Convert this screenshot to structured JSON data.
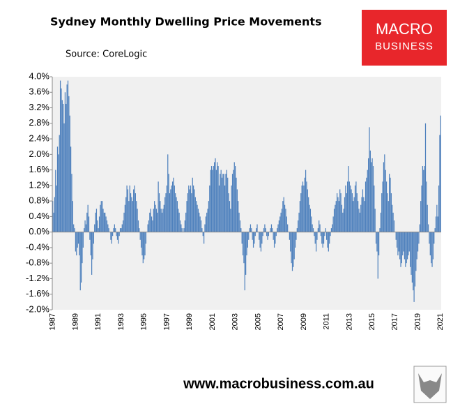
{
  "chart_data": {
    "type": "bar",
    "title": "Sydney Monthly Dwelling Price Movements",
    "subtitle": "Source: CoreLogic",
    "logo": [
      "MACRO",
      "BUSINESS"
    ],
    "footer": "www.macrobusiness.com.au",
    "color": "#4f81bd",
    "grid": false,
    "ylim": [
      -2.0,
      4.0
    ],
    "yticks": [
      {
        "value": -2.0,
        "label": "-2.0%"
      },
      {
        "value": -1.6,
        "label": "-1.6%"
      },
      {
        "value": -1.2,
        "label": "-1.2%"
      },
      {
        "value": -0.8,
        "label": "-0.8%"
      },
      {
        "value": -0.4,
        "label": "-0.4%"
      },
      {
        "value": 0.0,
        "label": "0.0%"
      },
      {
        "value": 0.4,
        "label": "0.4%"
      },
      {
        "value": 0.8,
        "label": "0.8%"
      },
      {
        "value": 1.2,
        "label": "1.2%"
      },
      {
        "value": 1.6,
        "label": "1.6%"
      },
      {
        "value": 2.0,
        "label": "2.0%"
      },
      {
        "value": 2.4,
        "label": "2.4%"
      },
      {
        "value": 2.8,
        "label": "2.8%"
      },
      {
        "value": 3.2,
        "label": "3.2%"
      },
      {
        "value": 3.6,
        "label": "3.6%"
      },
      {
        "value": 4.0,
        "label": "4.0%"
      }
    ],
    "categories": [
      "1987",
      null,
      null,
      null,
      null,
      null,
      null,
      null,
      null,
      null,
      null,
      null,
      null,
      null,
      null,
      null,
      null,
      null,
      null,
      null,
      null,
      null,
      null,
      null,
      "1989",
      null,
      null,
      null,
      null,
      null,
      null,
      null,
      null,
      null,
      null,
      null,
      null,
      null,
      null,
      null,
      null,
      null,
      null,
      null,
      null,
      null,
      null,
      null,
      "1991",
      null,
      null,
      null,
      null,
      null,
      null,
      null,
      null,
      null,
      null,
      null,
      null,
      null,
      null,
      null,
      null,
      null,
      null,
      null,
      null,
      null,
      null,
      null,
      "1993",
      null,
      null,
      null,
      null,
      null,
      null,
      null,
      null,
      null,
      null,
      null,
      null,
      null,
      null,
      null,
      null,
      null,
      null,
      null,
      null,
      null,
      null,
      null,
      "1995",
      null,
      null,
      null,
      null,
      null,
      null,
      null,
      null,
      null,
      null,
      null,
      null,
      null,
      null,
      null,
      null,
      null,
      null,
      null,
      null,
      null,
      null,
      null,
      "1997",
      null,
      null,
      null,
      null,
      null,
      null,
      null,
      null,
      null,
      null,
      null,
      null,
      null,
      null,
      null,
      null,
      null,
      null,
      null,
      null,
      null,
      null,
      null,
      "1999",
      null,
      null,
      null,
      null,
      null,
      null,
      null,
      null,
      null,
      null,
      null,
      null,
      null,
      null,
      null,
      null,
      null,
      null,
      null,
      null,
      null,
      null,
      null,
      "2001",
      null,
      null,
      null,
      null,
      null,
      null,
      null,
      null,
      null,
      null,
      null,
      null,
      null,
      null,
      null,
      null,
      null,
      null,
      null,
      null,
      null,
      null,
      null,
      "2003",
      null,
      null,
      null,
      null,
      null,
      null,
      null,
      null,
      null,
      null,
      null,
      null,
      null,
      null,
      null,
      null,
      null,
      null,
      null,
      null,
      null,
      null,
      null,
      "2005",
      null,
      null,
      null,
      null,
      null,
      null,
      null,
      null,
      null,
      null,
      null,
      null,
      null,
      null,
      null,
      null,
      null,
      null,
      null,
      null,
      null,
      null,
      null,
      "2007",
      null,
      null,
      null,
      null,
      null,
      null,
      null,
      null,
      null,
      null,
      null,
      null,
      null,
      null,
      null,
      null,
      null,
      null,
      null,
      null,
      null,
      null,
      null,
      "2009",
      null,
      null,
      null,
      null,
      null,
      null,
      null,
      null,
      null,
      null,
      null,
      null,
      null,
      null,
      null,
      null,
      null,
      null,
      null,
      null,
      null,
      null,
      null,
      "2011",
      null,
      null,
      null,
      null,
      null,
      null,
      null,
      null,
      null,
      null,
      null,
      null,
      null,
      null,
      null,
      null,
      null,
      null,
      null,
      null,
      null,
      null,
      null,
      "2013",
      null,
      null,
      null,
      null,
      null,
      null,
      null,
      null,
      null,
      null,
      null,
      null,
      null,
      null,
      null,
      null,
      null,
      null,
      null,
      null,
      null,
      null,
      null,
      "2015",
      null,
      null,
      null,
      null,
      null,
      null,
      null,
      null,
      null,
      null,
      null,
      null,
      null,
      null,
      null,
      null,
      null,
      null,
      null,
      null,
      null,
      null,
      null,
      "2017",
      null,
      null,
      null,
      null,
      null,
      null,
      null,
      null,
      null,
      null,
      null,
      null,
      null,
      null,
      null,
      null,
      null,
      null,
      null,
      null,
      null,
      null,
      null,
      "2019",
      null,
      null,
      null,
      null,
      null,
      null,
      null,
      null,
      null,
      null,
      null,
      null,
      null,
      null,
      null,
      null,
      null,
      null,
      null,
      null,
      null,
      null,
      null,
      "2021"
    ],
    "values": [
      0.8,
      0.5,
      0.9,
      1.6,
      1.2,
      2.2,
      2.0,
      2.5,
      3.9,
      3.7,
      3.4,
      3.3,
      2.8,
      3.6,
      3.3,
      3.8,
      3.9,
      3.5,
      3.0,
      2.2,
      1.5,
      0.8,
      0.2,
      0.1,
      -0.5,
      -0.6,
      -0.4,
      -0.3,
      -0.6,
      -1.5,
      -1.3,
      -0.8,
      -0.4,
      0.1,
      0.3,
      0.2,
      0.5,
      0.7,
      0.4,
      -0.2,
      -0.6,
      -1.1,
      -0.7,
      -0.3,
      0.2,
      0.5,
      0.6,
      0.3,
      0.1,
      0.4,
      0.7,
      0.8,
      0.8,
      0.6,
      0.5,
      0.5,
      0.4,
      0.3,
      0.2,
      0.1,
      0.0,
      -0.2,
      -0.3,
      -0.1,
      0.1,
      0.2,
      0.1,
      -0.1,
      -0.2,
      -0.3,
      -0.1,
      0.1,
      0.1,
      0.2,
      0.3,
      0.5,
      0.7,
      0.9,
      1.2,
      1.1,
      0.8,
      1.2,
      1.0,
      0.9,
      0.8,
      1.1,
      1.2,
      1.0,
      0.8,
      0.6,
      0.3,
      0.1,
      -0.2,
      -0.4,
      -0.6,
      -0.8,
      -0.7,
      -0.6,
      -0.3,
      0.0,
      0.2,
      0.3,
      0.5,
      0.6,
      0.4,
      0.3,
      0.6,
      0.8,
      0.7,
      0.6,
      0.5,
      1.3,
      1.0,
      0.8,
      0.6,
      0.5,
      0.6,
      0.7,
      0.9,
      1.0,
      1.2,
      2.0,
      1.5,
      1.0,
      1.1,
      1.2,
      1.3,
      1.4,
      1.2,
      1.0,
      0.9,
      0.8,
      0.6,
      0.5,
      0.3,
      0.2,
      0.1,
      0.0,
      0.1,
      0.3,
      0.5,
      0.8,
      1.0,
      1.2,
      1.1,
      1.2,
      1.0,
      1.4,
      1.2,
      1.1,
      0.9,
      0.8,
      0.7,
      0.6,
      0.5,
      0.4,
      0.3,
      0.1,
      -0.1,
      -0.3,
      0.2,
      0.4,
      0.5,
      0.6,
      0.8,
      1.2,
      1.6,
      1.7,
      1.6,
      1.7,
      1.8,
      1.9,
      1.6,
      1.8,
      1.7,
      1.2,
      1.5,
      1.6,
      1.4,
      1.5,
      1.5,
      1.2,
      1.5,
      1.6,
      1.4,
      1.0,
      0.8,
      0.6,
      1.2,
      1.5,
      1.6,
      1.8,
      1.7,
      1.4,
      1.1,
      0.8,
      0.5,
      0.3,
      0.1,
      -0.3,
      -0.6,
      -0.8,
      -1.5,
      -1.1,
      -0.6,
      -0.4,
      -0.2,
      0.1,
      0.2,
      0.1,
      -0.2,
      -0.4,
      -0.3,
      -0.1,
      0.1,
      0.2,
      0.0,
      -0.2,
      -0.4,
      -0.5,
      -0.3,
      -0.1,
      0.1,
      0.2,
      0.1,
      -0.1,
      -0.2,
      -0.1,
      0.0,
      0.1,
      0.2,
      0.1,
      -0.2,
      -0.4,
      -0.3,
      -0.1,
      0.1,
      0.2,
      0.3,
      0.4,
      0.5,
      0.6,
      0.8,
      0.9,
      0.7,
      0.6,
      0.4,
      0.2,
      0.0,
      -0.2,
      -0.5,
      -0.8,
      -1.0,
      -0.9,
      -0.7,
      -0.4,
      -0.2,
      0.1,
      0.3,
      0.5,
      0.8,
      1.0,
      1.2,
      1.3,
      1.2,
      1.4,
      1.6,
      1.3,
      1.1,
      0.9,
      0.7,
      0.6,
      0.4,
      0.2,
      0.1,
      -0.1,
      -0.3,
      -0.5,
      -0.2,
      0.1,
      0.3,
      0.2,
      -0.1,
      -0.3,
      -0.4,
      -0.3,
      -0.1,
      0.1,
      -0.2,
      -0.4,
      -0.5,
      -0.3,
      -0.1,
      0.1,
      0.2,
      0.4,
      0.6,
      0.7,
      0.8,
      1.0,
      0.9,
      0.8,
      1.1,
      1.0,
      0.7,
      0.5,
      0.6,
      0.9,
      1.2,
      1.0,
      1.3,
      1.7,
      1.3,
      1.2,
      1.1,
      1.0,
      0.8,
      0.9,
      1.2,
      1.3,
      1.0,
      0.8,
      0.6,
      0.5,
      0.7,
      0.9,
      1.1,
      0.9,
      0.8,
      1.3,
      1.4,
      1.6,
      1.9,
      2.7,
      2.1,
      1.8,
      1.9,
      1.7,
      1.2,
      0.6,
      -0.3,
      -0.5,
      -1.2,
      -0.6,
      0.1,
      0.5,
      1.0,
      1.3,
      1.8,
      2.0,
      1.6,
      1.3,
      1.0,
      0.8,
      1.5,
      1.4,
      1.0,
      0.7,
      0.5,
      0.3,
      0.0,
      -0.2,
      -0.4,
      -0.6,
      -0.5,
      -0.7,
      -0.9,
      -0.8,
      -0.6,
      -0.5,
      -0.7,
      -0.9,
      -0.8,
      -0.7,
      -0.6,
      -0.5,
      -0.9,
      -1.1,
      -1.3,
      -1.5,
      -1.8,
      -1.4,
      -1.0,
      -0.7,
      -0.5,
      -0.3,
      0.2,
      0.8,
      1.2,
      1.7,
      1.6,
      1.7,
      2.8,
      1.3,
      0.7,
      0.2,
      -0.3,
      -0.6,
      -0.8,
      -0.9,
      -0.7,
      -0.3,
      0.1,
      0.4,
      0.7,
      0.4,
      1.2,
      2.5,
      3.0
    ]
  }
}
